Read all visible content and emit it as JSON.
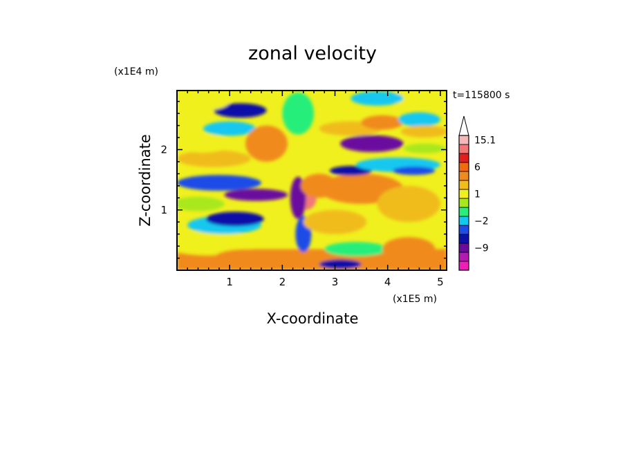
{
  "chart_data": {
    "type": "heatmap",
    "title": "zonal velocity",
    "xlabel": "X-coordinate",
    "ylabel": "Z-coordinate",
    "x_unit_label": "(x1E5 m)",
    "y_unit_label": "(x1E4 m)",
    "time_label": "t=115800 s",
    "xlim": [
      0,
      5.12
    ],
    "ylim": [
      0,
      2.98
    ],
    "x_ticks": [
      "1",
      "2",
      "3",
      "4",
      "5"
    ],
    "y_ticks": [
      "1",
      "2"
    ],
    "colorbar": {
      "extend": "max",
      "tick_labels": [
        "15.1",
        "6",
        "1",
        "-2",
        "-9"
      ],
      "levels": [
        -15,
        -12,
        -9,
        -6,
        -4,
        -2,
        -1,
        0,
        1,
        2,
        3,
        6,
        9,
        12,
        15.1
      ],
      "colors": [
        "#ee1fb9",
        "#b21ab0",
        "#6a0a9e",
        "#0c0fa8",
        "#1e4ce8",
        "#12c8f0",
        "#28ee7a",
        "#a8e81e",
        "#f0f01e",
        "#f0bc1e",
        "#f08a1e",
        "#f06a14",
        "#e21e1e",
        "#f27878",
        "#f4b8b8"
      ]
    },
    "field_regions": [
      {
        "kind": "band",
        "value": 3.5,
        "x0": 0,
        "x1": 5.12,
        "z0": 0,
        "z1": 0.35
      },
      {
        "kind": "blob",
        "x": 0.6,
        "z": 0.45,
        "rx": 0.9,
        "rz": 0.2,
        "value": 1.5
      },
      {
        "kind": "blob",
        "x": 1.3,
        "z": 0.2,
        "rx": 0.6,
        "rz": 0.15,
        "value": 4.5
      },
      {
        "kind": "blob",
        "x": 0.9,
        "z": 0.75,
        "rx": 0.7,
        "rz": 0.15,
        "value": -1.5
      },
      {
        "kind": "blob",
        "x": 1.1,
        "z": 0.85,
        "rx": 0.55,
        "rz": 0.12,
        "value": -5
      },
      {
        "kind": "blob",
        "x": 0.4,
        "z": 1.1,
        "rx": 0.5,
        "rz": 0.12,
        "value": 0.5
      },
      {
        "kind": "blob",
        "x": 0.8,
        "z": 1.45,
        "rx": 0.8,
        "rz": 0.13,
        "value": -3
      },
      {
        "kind": "blob",
        "x": 1.5,
        "z": 1.25,
        "rx": 0.6,
        "rz": 0.1,
        "value": -7
      },
      {
        "kind": "blob",
        "x": 0.7,
        "z": 1.85,
        "rx": 0.7,
        "rz": 0.14,
        "value": 2.5
      },
      {
        "kind": "blob",
        "x": 0.5,
        "z": 2.1,
        "rx": 0.5,
        "rz": 0.15,
        "value": 1.2
      },
      {
        "kind": "blob",
        "x": 1.0,
        "z": 2.35,
        "rx": 0.5,
        "rz": 0.12,
        "value": -1.2
      },
      {
        "kind": "blob",
        "x": 1.2,
        "z": 2.65,
        "rx": 0.5,
        "rz": 0.12,
        "value": -6
      },
      {
        "kind": "blob",
        "x": 0.5,
        "z": 2.8,
        "rx": 0.5,
        "rz": 0.15,
        "value": 1.2
      },
      {
        "kind": "blob",
        "x": 1.7,
        "z": 2.1,
        "rx": 0.4,
        "rz": 0.3,
        "value": 3
      },
      {
        "kind": "blob",
        "x": 2.3,
        "z": 2.6,
        "rx": 0.3,
        "rz": 0.35,
        "value": -1
      },
      {
        "kind": "blob",
        "x": 2.45,
        "z": 1.2,
        "rx": 0.2,
        "rz": 0.2,
        "value": 12
      },
      {
        "kind": "blob",
        "x": 2.3,
        "z": 1.2,
        "rx": 0.15,
        "rz": 0.35,
        "value": -7
      },
      {
        "kind": "blob",
        "x": 2.4,
        "z": 0.6,
        "rx": 0.15,
        "rz": 0.3,
        "value": -4
      },
      {
        "kind": "blob",
        "x": 2.7,
        "z": 1.4,
        "rx": 0.35,
        "rz": 0.2,
        "value": 5
      },
      {
        "kind": "blob",
        "x": 3.5,
        "z": 1.35,
        "rx": 0.8,
        "rz": 0.25,
        "value": 4
      },
      {
        "kind": "blob",
        "x": 4.4,
        "z": 1.1,
        "rx": 0.6,
        "rz": 0.3,
        "value": 2.5
      },
      {
        "kind": "blob",
        "x": 3.0,
        "z": 0.8,
        "rx": 0.6,
        "rz": 0.2,
        "value": 2
      },
      {
        "kind": "blob",
        "x": 3.4,
        "z": 0.35,
        "rx": 0.6,
        "rz": 0.12,
        "value": -1
      },
      {
        "kind": "blob",
        "x": 3.1,
        "z": 0.1,
        "rx": 0.4,
        "rz": 0.08,
        "value": -5
      },
      {
        "kind": "blob",
        "x": 4.4,
        "z": 0.35,
        "rx": 0.5,
        "rz": 0.2,
        "value": 4
      },
      {
        "kind": "blob",
        "x": 3.3,
        "z": 1.65,
        "rx": 0.4,
        "rz": 0.08,
        "value": -6
      },
      {
        "kind": "blob",
        "x": 4.2,
        "z": 1.75,
        "rx": 0.8,
        "rz": 0.12,
        "value": -1.5
      },
      {
        "kind": "blob",
        "x": 4.5,
        "z": 1.65,
        "rx": 0.4,
        "rz": 0.07,
        "value": -4
      },
      {
        "kind": "blob",
        "x": 3.7,
        "z": 2.1,
        "rx": 0.6,
        "rz": 0.14,
        "value": -7
      },
      {
        "kind": "blob",
        "x": 3.3,
        "z": 2.35,
        "rx": 0.6,
        "rz": 0.12,
        "value": 2
      },
      {
        "kind": "blob",
        "x": 3.9,
        "z": 2.45,
        "rx": 0.4,
        "rz": 0.12,
        "value": 4
      },
      {
        "kind": "blob",
        "x": 4.6,
        "z": 2.5,
        "rx": 0.4,
        "rz": 0.12,
        "value": -1.5
      },
      {
        "kind": "blob",
        "x": 4.7,
        "z": 2.3,
        "rx": 0.45,
        "rz": 0.1,
        "value": 2
      },
      {
        "kind": "blob",
        "x": 4.5,
        "z": 2.85,
        "rx": 0.6,
        "rz": 0.12,
        "value": 1.5
      },
      {
        "kind": "blob",
        "x": 3.8,
        "z": 2.85,
        "rx": 0.5,
        "rz": 0.12,
        "value": -1.5
      },
      {
        "kind": "blob",
        "x": 4.7,
        "z": 2.02,
        "rx": 0.4,
        "rz": 0.08,
        "value": 0.5
      }
    ]
  }
}
